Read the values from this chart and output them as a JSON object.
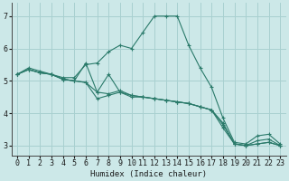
{
  "xlabel": "Humidex (Indice chaleur)",
  "background_color": "#cce8e8",
  "grid_color": "#a8d0d0",
  "line_color": "#2a7a6a",
  "xlim": [
    -0.5,
    23.5
  ],
  "ylim": [
    2.7,
    7.4
  ],
  "yticks": [
    3,
    4,
    5,
    6,
    7
  ],
  "xticks": [
    0,
    1,
    2,
    3,
    4,
    5,
    6,
    7,
    8,
    9,
    10,
    11,
    12,
    13,
    14,
    15,
    16,
    17,
    18,
    19,
    20,
    21,
    22,
    23
  ],
  "series": [
    {
      "x": [
        0,
        1,
        2,
        3,
        4,
        5,
        6,
        7,
        8,
        9,
        10,
        11,
        12,
        13,
        14,
        15,
        16,
        17,
        18,
        19,
        20,
        21,
        22,
        23
      ],
      "y": [
        5.2,
        5.4,
        5.3,
        5.2,
        5.1,
        5.1,
        5.5,
        5.55,
        5.9,
        6.1,
        6.0,
        6.5,
        7.0,
        7.0,
        7.0,
        6.1,
        5.4,
        4.8,
        3.85,
        3.1,
        3.05,
        3.3,
        3.35,
        3.05
      ]
    },
    {
      "x": [
        0,
        1,
        2,
        3,
        4,
        5,
        6,
        7,
        8,
        9,
        10,
        11,
        12,
        13,
        14,
        15,
        16,
        17,
        18,
        19,
        20,
        21,
        22,
        23
      ],
      "y": [
        5.2,
        5.35,
        5.25,
        5.2,
        5.05,
        5.0,
        4.95,
        4.65,
        4.6,
        4.7,
        4.55,
        4.5,
        4.45,
        4.4,
        4.35,
        4.3,
        4.2,
        4.1,
        3.7,
        3.05,
        3.0,
        3.05,
        3.1,
        3.0
      ]
    },
    {
      "x": [
        0,
        1,
        2,
        3,
        4,
        5,
        6,
        7,
        8,
        9,
        10,
        11,
        12,
        13,
        14,
        15,
        16,
        17,
        18,
        19,
        20,
        21,
        22,
        23
      ],
      "y": [
        5.2,
        5.35,
        5.25,
        5.2,
        5.05,
        5.0,
        5.55,
        4.65,
        5.2,
        4.65,
        4.55,
        4.5,
        4.45,
        4.4,
        4.35,
        4.3,
        4.2,
        4.1,
        3.65,
        3.05,
        3.0,
        3.15,
        3.2,
        3.0
      ]
    },
    {
      "x": [
        0,
        1,
        2,
        3,
        4,
        5,
        6,
        7,
        8,
        9,
        10,
        11,
        12,
        13,
        14,
        15,
        16,
        17,
        18,
        19,
        20,
        21,
        22,
        23
      ],
      "y": [
        5.2,
        5.35,
        5.25,
        5.2,
        5.05,
        5.0,
        4.95,
        4.45,
        4.55,
        4.65,
        4.5,
        4.5,
        4.45,
        4.4,
        4.35,
        4.3,
        4.2,
        4.1,
        3.55,
        3.05,
        3.0,
        3.05,
        3.1,
        3.0
      ]
    }
  ]
}
